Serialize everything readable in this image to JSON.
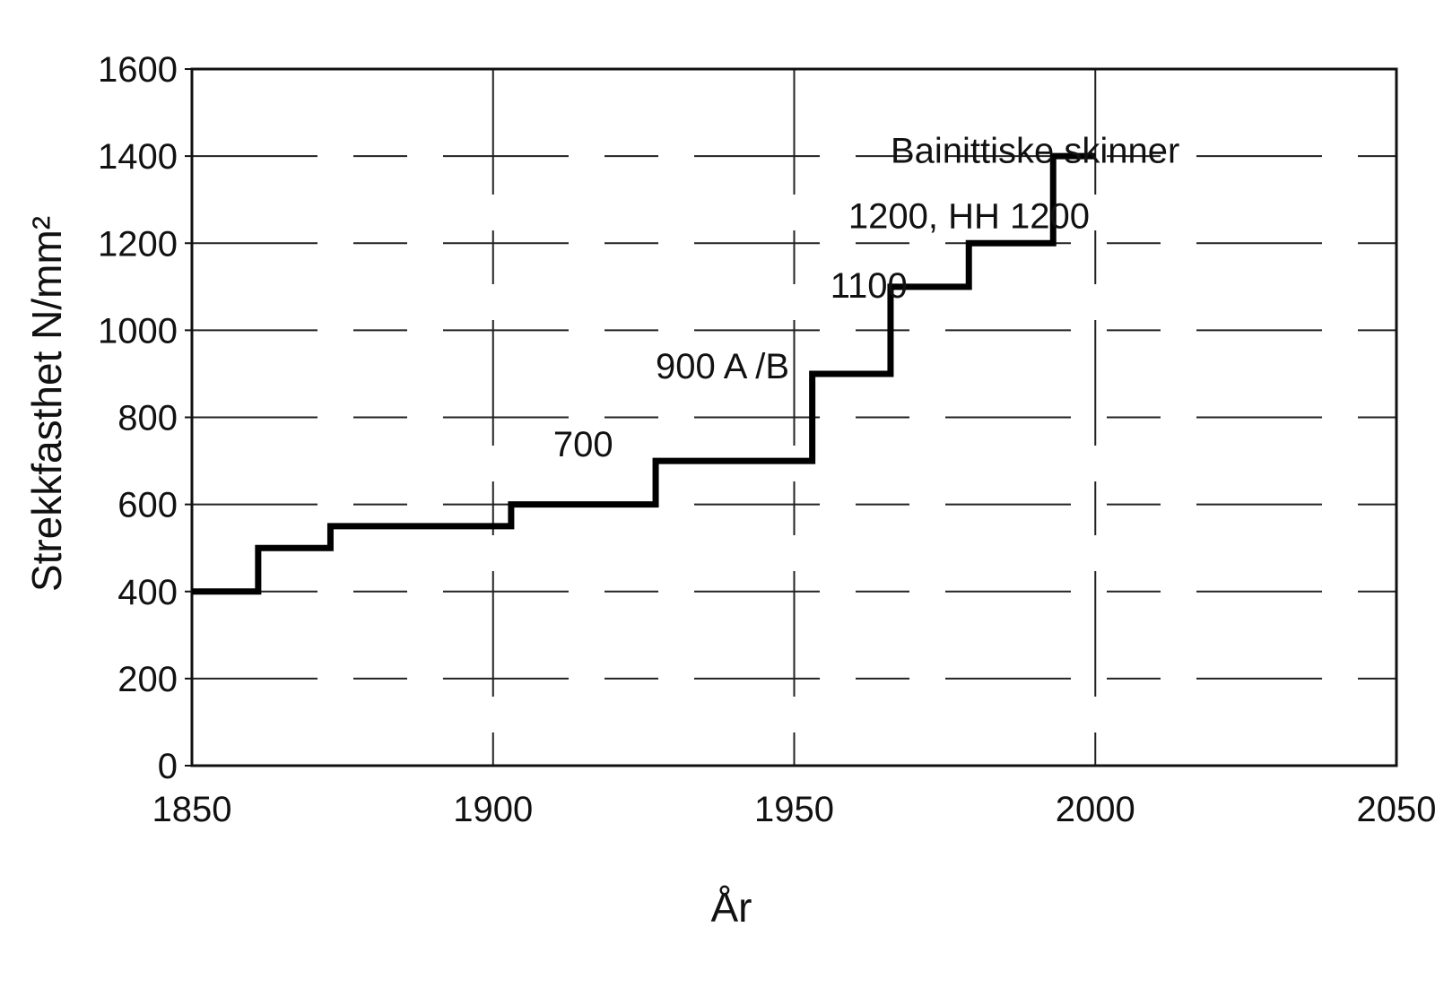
{
  "chart_data": {
    "type": "line",
    "step": true,
    "xlabel": "År",
    "ylabel": "Strekkfasthet N/mm²",
    "xlim": [
      1850,
      2050
    ],
    "ylim": [
      0,
      1600
    ],
    "xticks": [
      1850,
      1900,
      1950,
      2000,
      2050
    ],
    "yticks": [
      0,
      200,
      400,
      600,
      800,
      1000,
      1200,
      1400,
      1600
    ],
    "grid": true,
    "series": [
      {
        "x": [
          1850,
          1861,
          1873,
          1903,
          1927,
          1953,
          1966,
          1979,
          1993,
          2000
        ],
        "y": [
          400,
          500,
          550,
          600,
          700,
          900,
          1100,
          1200,
          1400,
          1400
        ]
      }
    ],
    "annotations": [
      {
        "text": "700",
        "x": 1910,
        "y": 710
      },
      {
        "text": "900 A /B",
        "x": 1927,
        "y": 890
      },
      {
        "text": "1100",
        "x": 1956,
        "y": 1075
      },
      {
        "text": "1200, HH 1200",
        "x": 1959,
        "y": 1235
      },
      {
        "text": "Bainittiske skinner",
        "x": 1966,
        "y": 1385
      }
    ]
  }
}
